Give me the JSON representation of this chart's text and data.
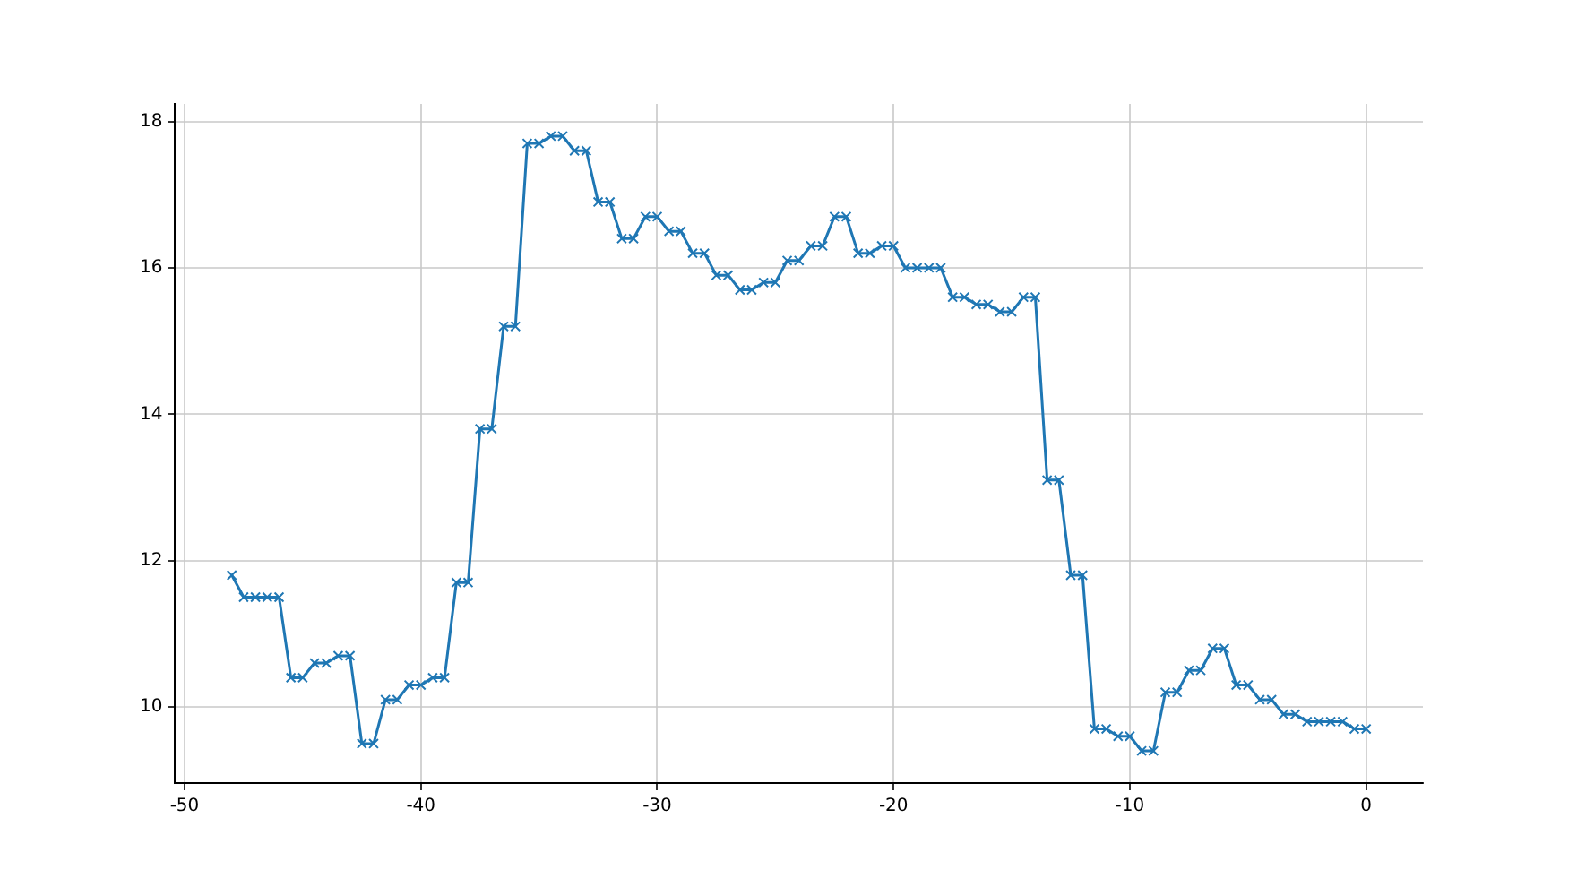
{
  "chart_data": {
    "type": "line",
    "x": [
      -48,
      -47.5,
      -47,
      -46.5,
      -46,
      -45.5,
      -45,
      -44.5,
      -44,
      -43.5,
      -43,
      -42.5,
      -42,
      -41.5,
      -41,
      -40.5,
      -40,
      -39.5,
      -39,
      -38.5,
      -38,
      -37.5,
      -37,
      -36.5,
      -36,
      -35.5,
      -35,
      -34.5,
      -34,
      -33.5,
      -33,
      -32.5,
      -32,
      -31.5,
      -31,
      -30.5,
      -30,
      -29.5,
      -29,
      -28.5,
      -28,
      -27.5,
      -27,
      -26.5,
      -26,
      -25.5,
      -25,
      -24.5,
      -24,
      -23.5,
      -23,
      -22.5,
      -22,
      -21.5,
      -21,
      -20.5,
      -20,
      -19.5,
      -19,
      -18.5,
      -18,
      -17.5,
      -17,
      -16.5,
      -16,
      -15.5,
      -15,
      -14.5,
      -14,
      -13.5,
      -13,
      -12.5,
      -12,
      -11.5,
      -11,
      -10.5,
      -10,
      -9.5,
      -9,
      -8.5,
      -8,
      -7.5,
      -7,
      -6.5,
      -6,
      -5.5,
      -5,
      -4.5,
      -4,
      -3.5,
      -3,
      -2.5,
      -2,
      -1.5,
      -1,
      -0.5,
      0
    ],
    "series": [
      {
        "color": "#1f77b4",
        "values": [
          11.8,
          11.5,
          11.5,
          11.5,
          11.5,
          10.4,
          10.4,
          10.6,
          10.6,
          10.7,
          10.7,
          9.5,
          9.5,
          10.1,
          10.1,
          10.3,
          10.3,
          10.4,
          10.4,
          11.7,
          11.7,
          13.8,
          13.8,
          15.2,
          15.2,
          17.7,
          17.7,
          17.8,
          17.8,
          17.6,
          17.6,
          16.9,
          16.9,
          16.4,
          16.4,
          16.7,
          16.7,
          16.5,
          16.5,
          16.2,
          16.2,
          15.9,
          15.9,
          15.7,
          15.7,
          15.8,
          15.8,
          16.1,
          16.1,
          16.3,
          16.3,
          16.7,
          16.7,
          16.2,
          16.2,
          16.3,
          16.3,
          16.0,
          16.0,
          16.0,
          16.0,
          15.6,
          15.6,
          15.5,
          15.5,
          15.4,
          15.4,
          15.6,
          15.6,
          13.1,
          13.1,
          11.8,
          11.8,
          9.7,
          9.7,
          9.6,
          9.6,
          9.4,
          9.4,
          10.2,
          10.2,
          10.5,
          10.5,
          10.8,
          10.8,
          10.3,
          10.3,
          10.1,
          10.1,
          9.9,
          9.9,
          9.8,
          9.8,
          9.8,
          9.8,
          9.7,
          9.7
        ]
      }
    ],
    "xlim": [
      -50.4,
      2.4
    ],
    "ylim": [
      8.96,
      18.24
    ],
    "xticks": [
      -50,
      -40,
      -30,
      -20,
      -10,
      0
    ],
    "yticks": [
      10,
      12,
      14,
      16,
      18
    ],
    "grid": true,
    "marker": "cross",
    "line_style": "solid",
    "legend": false
  }
}
